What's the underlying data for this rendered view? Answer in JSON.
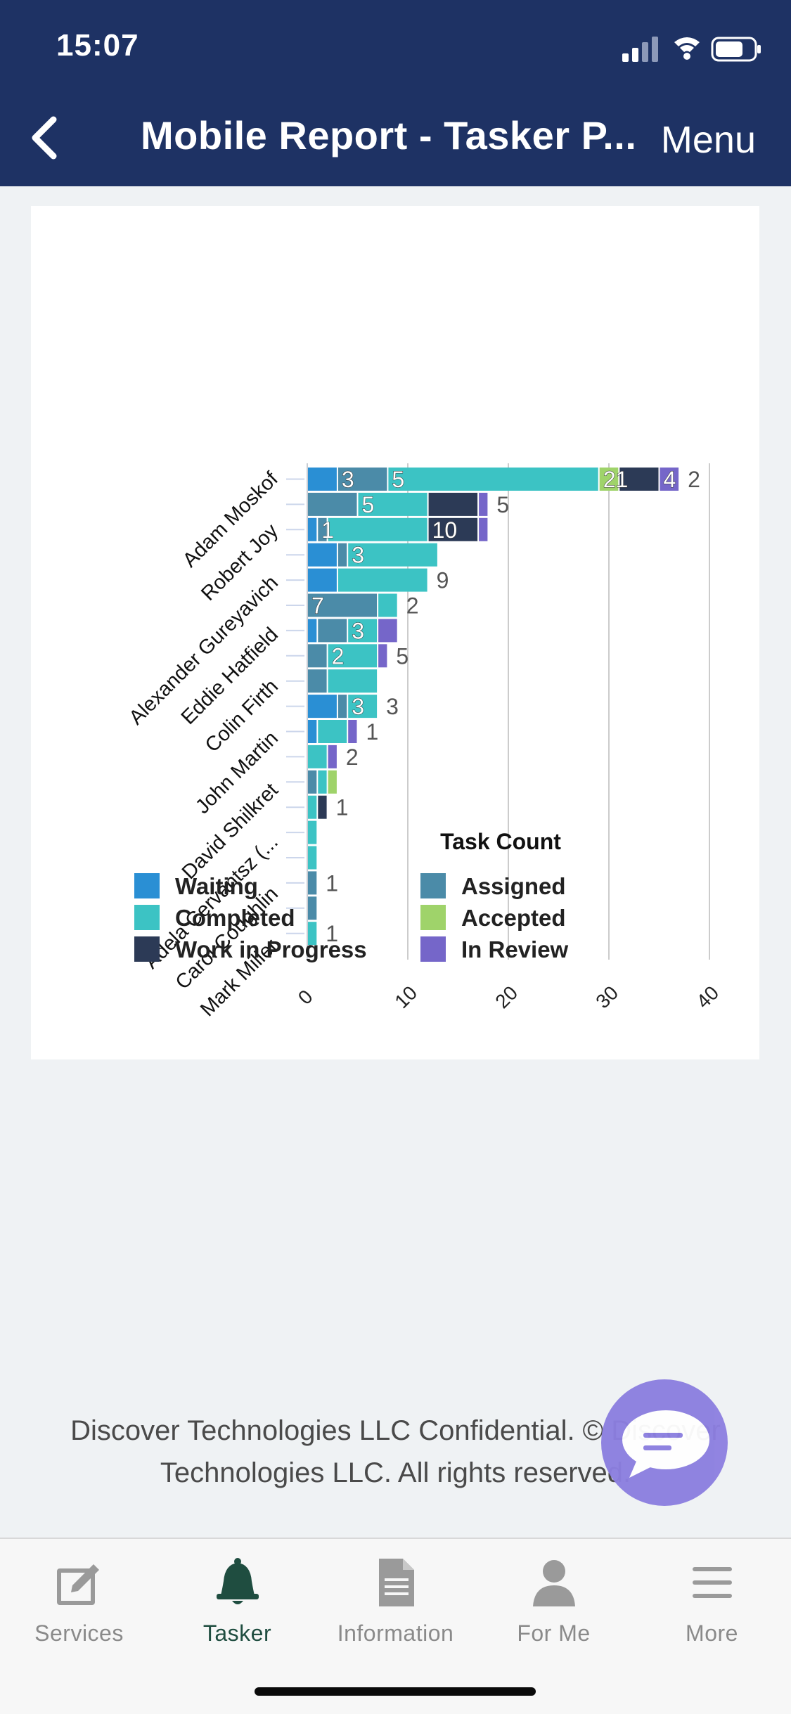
{
  "status_bar": {
    "time": "15:07"
  },
  "nav": {
    "title": "Mobile Report - Tasker P...",
    "menu_label": "Menu"
  },
  "chart_data": {
    "type": "bar",
    "orientation": "horizontal",
    "stacked": true,
    "xlabel": "Task Count",
    "xlim": [
      0,
      40
    ],
    "x_ticks": [
      "0",
      "10",
      "20",
      "30",
      "40"
    ],
    "grid": true,
    "legend_placement": "bottom",
    "category_labels": [
      "Adam Moskof",
      "Robert Joy",
      "Alexander Gureyavich",
      "Eddie Hatfield",
      "Colin Firth",
      "John Martin",
      "David Shilkret",
      "Adela Cervantsz (...",
      "Carol Coughlin",
      "Mark Miller"
    ],
    "legend": [
      {
        "name": "Waiting",
        "color": "#2a8fd4"
      },
      {
        "name": "Assigned",
        "color": "#4b8ba8"
      },
      {
        "name": "Completed",
        "color": "#3cc3c4"
      },
      {
        "name": "Accepted",
        "color": "#9fd36a"
      },
      {
        "name": "Work in Progress",
        "color": "#2c3a56"
      },
      {
        "name": "In Review",
        "color": "#7566c9"
      }
    ],
    "rows": [
      {
        "segments": [
          [
            "Waiting",
            3
          ],
          [
            "Assigned",
            5
          ],
          [
            "Completed",
            21
          ],
          [
            "Accepted",
            2
          ],
          [
            "Work in Progress",
            4
          ],
          [
            "In Review",
            2
          ]
        ],
        "labels": [
          {
            "seg": 1,
            "text": "3"
          },
          {
            "seg": 2,
            "text": "5"
          },
          {
            "seg": 3,
            "text": "21"
          },
          {
            "seg": 5,
            "text": "4"
          },
          {
            "end": true,
            "text": "2"
          }
        ]
      },
      {
        "segments": [
          [
            "Assigned",
            5
          ],
          [
            "Completed",
            7
          ],
          [
            "Work in Progress",
            5
          ],
          [
            "In Review",
            1
          ]
        ],
        "labels": [
          {
            "seg": 1,
            "text": "5"
          },
          {
            "end": true,
            "text": "5"
          }
        ]
      },
      {
        "segments": [
          [
            "Waiting",
            1
          ],
          [
            "Assigned",
            1
          ],
          [
            "Completed",
            10
          ],
          [
            "Work in Progress",
            5
          ],
          [
            "In Review",
            1
          ]
        ],
        "labels": [
          {
            "seg": 1,
            "text": "1"
          },
          {
            "seg": 3,
            "text": "10"
          }
        ]
      },
      {
        "segments": [
          [
            "Waiting",
            3
          ],
          [
            "Assigned",
            1
          ],
          [
            "Completed",
            9
          ]
        ],
        "labels": [
          {
            "seg": 2,
            "text": "3"
          }
        ]
      },
      {
        "segments": [
          [
            "Waiting",
            3
          ],
          [
            "Completed",
            9
          ]
        ],
        "labels": [
          {
            "end": true,
            "text": "9"
          }
        ]
      },
      {
        "segments": [
          [
            "Assigned",
            7
          ],
          [
            "Completed",
            2
          ]
        ],
        "labels": [
          {
            "seg": 0,
            "text": "7"
          },
          {
            "end": true,
            "text": "2"
          }
        ]
      },
      {
        "segments": [
          [
            "Waiting",
            1
          ],
          [
            "Assigned",
            3
          ],
          [
            "Completed",
            3
          ],
          [
            "In Review",
            2
          ]
        ],
        "labels": [
          {
            "seg": 2,
            "text": "3"
          }
        ]
      },
      {
        "segments": [
          [
            "Assigned",
            2
          ],
          [
            "Completed",
            5
          ],
          [
            "In Review",
            1
          ]
        ],
        "labels": [
          {
            "seg": 1,
            "text": "2"
          },
          {
            "end": true,
            "text": "5"
          }
        ]
      },
      {
        "segments": [
          [
            "Assigned",
            2
          ],
          [
            "Completed",
            5
          ]
        ],
        "labels": []
      },
      {
        "segments": [
          [
            "Waiting",
            3
          ],
          [
            "Assigned",
            1
          ],
          [
            "Completed",
            3
          ]
        ],
        "labels": [
          {
            "seg": 2,
            "text": "3"
          },
          {
            "end": true,
            "text": "3"
          }
        ]
      },
      {
        "segments": [
          [
            "Waiting",
            1
          ],
          [
            "Completed",
            3
          ],
          [
            "In Review",
            1
          ]
        ],
        "labels": [
          {
            "end": true,
            "text": "1"
          }
        ]
      },
      {
        "segments": [
          [
            "Completed",
            2
          ],
          [
            "In Review",
            1
          ]
        ],
        "labels": [
          {
            "end": true,
            "text": "2"
          }
        ]
      },
      {
        "segments": [
          [
            "Assigned",
            1
          ],
          [
            "Completed",
            1
          ],
          [
            "Accepted",
            1
          ]
        ],
        "labels": []
      },
      {
        "segments": [
          [
            "Completed",
            1
          ],
          [
            "Work in Progress",
            1
          ]
        ],
        "labels": [
          {
            "end": true,
            "text": "1"
          }
        ]
      },
      {
        "segments": [
          [
            "Completed",
            1
          ]
        ],
        "labels": []
      },
      {
        "segments": [
          [
            "Completed",
            1
          ]
        ],
        "labels": []
      },
      {
        "segments": [
          [
            "Assigned",
            1
          ]
        ],
        "labels": [
          {
            "end": true,
            "text": "1"
          }
        ]
      },
      {
        "segments": [
          [
            "Assigned",
            1
          ]
        ],
        "labels": []
      },
      {
        "segments": [
          [
            "Completed",
            1
          ]
        ],
        "labels": [
          {
            "end": true,
            "text": "1"
          }
        ]
      }
    ]
  },
  "footer": {
    "text": "Discover Technologies LLC Confidential. © Discover Technologies LLC. All rights reserved."
  },
  "chat_button": {
    "icon": "chat-bubble-icon"
  },
  "tabbar": {
    "tabs": [
      {
        "label": "Services",
        "icon": "edit-icon",
        "active": false
      },
      {
        "label": "Tasker",
        "icon": "bell-icon",
        "active": true
      },
      {
        "label": "Information",
        "icon": "document-icon",
        "active": false
      },
      {
        "label": "For Me",
        "icon": "person-icon",
        "active": false
      },
      {
        "label": "More",
        "icon": "menu-icon",
        "active": false
      }
    ]
  }
}
